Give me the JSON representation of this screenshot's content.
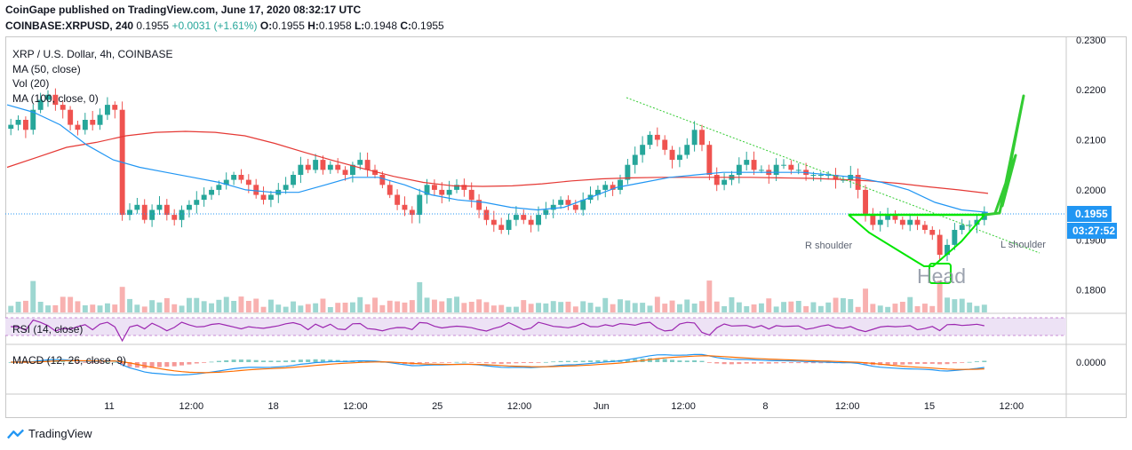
{
  "header": {
    "publisher_line": "CoinGape published on TradingView.com, June 17, 2020 08:32:17 UTC",
    "symbol": "COINBASE:XRPUSD, 240",
    "last": "0.1955",
    "change": "+0.0031 (+1.61%)",
    "ohlc": {
      "o_label": "O:",
      "o": "0.1955",
      "h_label": "H:",
      "h": "0.1958",
      "l_label": "L:",
      "l": "0.1948",
      "c_label": "C:",
      "c": "0.1955"
    }
  },
  "legend": {
    "title": "XRP / U.S. Dollar, 4h, COINBASE",
    "ma50": "MA (50, close)",
    "vol": "Vol (20)",
    "ma100": "MA (100, close, 0)",
    "rsi": "RSI (14, close)",
    "macd": "MACD (12, 26, close, 9)"
  },
  "price_badge": "0.1955",
  "countdown_badge": "03:27:52",
  "annotations": {
    "r_shoulder": "R shoulder",
    "l_shoulder": "L shoulder",
    "head": "Head"
  },
  "branding": {
    "logo_text": "TradingView"
  },
  "colors": {
    "up": "#26a69a",
    "down": "#ef5350",
    "ma50": "#2196f3",
    "ma100": "#e53935",
    "rsi": "#9c27b0",
    "pattern": "#00e600",
    "trend": "#33cc33",
    "badge": "#2196f3"
  },
  "chart_data": {
    "type": "candlestick",
    "series": [
      {
        "name": "MA (50, close)"
      },
      {
        "name": "MA (100, close, 0)"
      }
    ],
    "y_ticks": [
      "0.2300",
      "0.2200",
      "0.2100",
      "0.2000",
      "0.1900",
      "0.1800"
    ],
    "ylim": [
      0.1755,
      0.2305
    ],
    "x_ticks": [
      "11",
      "12:00",
      "18",
      "12:00",
      "25",
      "12:00",
      "Jun",
      "12:00",
      "8",
      "12:00",
      "15",
      "12:00"
    ],
    "macd_ticks": [
      "0.0000"
    ],
    "close_series": [
      0.213,
      0.214,
      0.212,
      0.216,
      0.218,
      0.219,
      0.217,
      0.216,
      0.213,
      0.212,
      0.214,
      0.213,
      0.215,
      0.217,
      0.216,
      0.195,
      0.196,
      0.197,
      0.194,
      0.196,
      0.197,
      0.195,
      0.194,
      0.196,
      0.197,
      0.198,
      0.199,
      0.2,
      0.201,
      0.202,
      0.203,
      0.202,
      0.201,
      0.199,
      0.198,
      0.199,
      0.2,
      0.201,
      0.203,
      0.205,
      0.204,
      0.206,
      0.204,
      0.205,
      0.204,
      0.203,
      0.205,
      0.206,
      0.204,
      0.203,
      0.201,
      0.199,
      0.197,
      0.196,
      0.195,
      0.199,
      0.201,
      0.2,
      0.199,
      0.2,
      0.201,
      0.2,
      0.198,
      0.196,
      0.194,
      0.193,
      0.192,
      0.194,
      0.195,
      0.194,
      0.193,
      0.195,
      0.196,
      0.197,
      0.198,
      0.197,
      0.196,
      0.198,
      0.199,
      0.2,
      0.201,
      0.2,
      0.202,
      0.205,
      0.207,
      0.209,
      0.211,
      0.21,
      0.208,
      0.206,
      0.207,
      0.209,
      0.212,
      0.209,
      0.203,
      0.201,
      0.202,
      0.203,
      0.205,
      0.206,
      0.204,
      0.204,
      0.203,
      0.205,
      0.205,
      0.204,
      0.204,
      0.203,
      0.203,
      0.203,
      0.203,
      0.202,
      0.202,
      0.203,
      0.2,
      0.195,
      0.193,
      0.194,
      0.195,
      0.194,
      0.193,
      0.194,
      0.193,
      0.192,
      0.191,
      0.187,
      0.189,
      0.192,
      0.193,
      0.193,
      0.194,
      0.1955
    ],
    "ma50_series": [
      0.217,
      0.2155,
      0.213,
      0.209,
      0.206,
      0.2045,
      0.2035,
      0.2025,
      0.2015,
      0.2,
      0.1995,
      0.1995,
      0.201,
      0.2025,
      0.2025,
      0.201,
      0.199,
      0.198,
      0.1975,
      0.1965,
      0.196,
      0.1965,
      0.1985,
      0.2005,
      0.2015,
      0.2025,
      0.203,
      0.2035,
      0.2035,
      0.2035,
      0.2035,
      0.203,
      0.2025,
      0.2015,
      0.2,
      0.1975,
      0.196,
      0.1955
    ],
    "ma100_series": [
      0.2045,
      0.2065,
      0.2085,
      0.2095,
      0.2108,
      0.2115,
      0.2117,
      0.2115,
      0.2108,
      0.2093,
      0.2075,
      0.2058,
      0.2042,
      0.2027,
      0.2015,
      0.2008,
      0.2007,
      0.2008,
      0.2012,
      0.2018,
      0.2022,
      0.2024,
      0.2025,
      0.2025,
      0.2025,
      0.2025,
      0.2024,
      0.2023,
      0.2021,
      0.2018,
      0.2013,
      0.2006,
      0.2,
      0.1993
    ]
  }
}
